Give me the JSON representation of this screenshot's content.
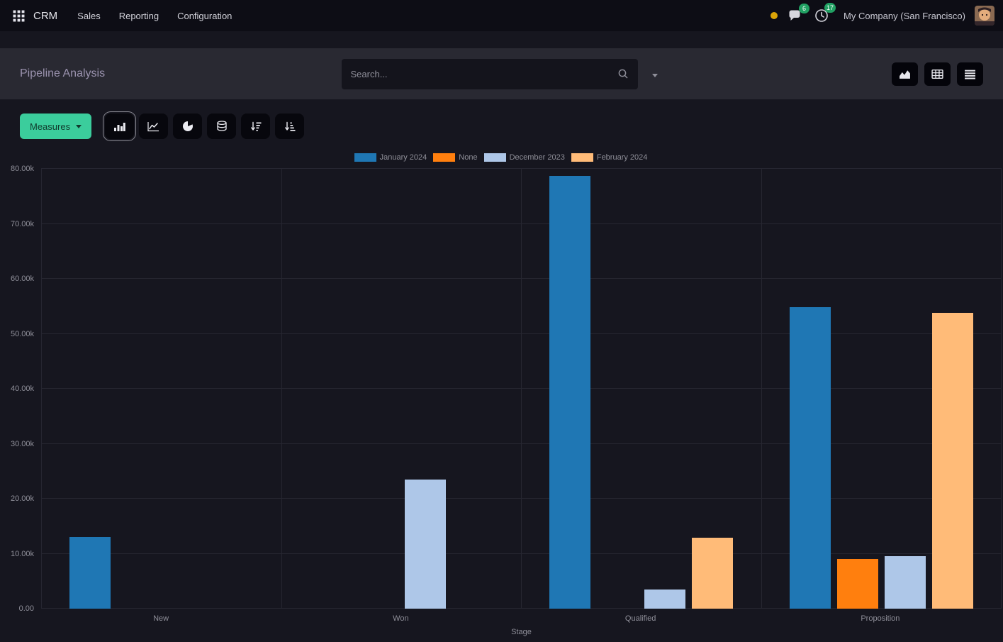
{
  "navbar": {
    "app_name": "CRM",
    "menus": [
      "Sales",
      "Reporting",
      "Configuration"
    ],
    "systray": {
      "messages_badge": "6",
      "activities_badge": "17",
      "company_name": "My Company (San Francisco)"
    }
  },
  "control_panel": {
    "breadcrumb": "Pipeline Analysis",
    "search": {
      "placeholder": "Search..."
    }
  },
  "graph_toolbar": {
    "measures_label": "Measures"
  },
  "icons": {
    "apps-grid-icon": "▦",
    "online-dot-icon": "●",
    "messages-icon": "🗨",
    "activities-clock-icon": "🕑",
    "search-icon": "🔍",
    "dropdown-caret-icon": "▾",
    "view-graph-icon": "⛰",
    "view-pivot-icon": "⊞",
    "view-list-icon": "☰",
    "bar-chart-icon": "▅▇▃",
    "line-chart-icon": "↗",
    "pie-chart-icon": "◕",
    "stacked-icon": "⛁",
    "sort-desc-icon": "↓≡",
    "sort-asc-icon": "↑≡"
  },
  "chart_data": {
    "type": "bar",
    "title": "",
    "xlabel": "Stage",
    "ylabel": "",
    "ylim": [
      0,
      80000
    ],
    "y_tick_labels": [
      "0.00",
      "10.00k",
      "20.00k",
      "30.00k",
      "40.00k",
      "50.00k",
      "60.00k",
      "70.00k",
      "80.00k"
    ],
    "categories": [
      "New",
      "Won",
      "Qualified",
      "Proposition"
    ],
    "series": [
      {
        "name": "January 2024",
        "color": "#1f77b4",
        "values": [
          13000,
          0,
          78700,
          54800
        ]
      },
      {
        "name": "None",
        "color": "#ff7f0e",
        "values": [
          0,
          0,
          0,
          9000
        ]
      },
      {
        "name": "December 2023",
        "color": "#aec7e8",
        "values": [
          0,
          23500,
          3500,
          9500
        ]
      },
      {
        "name": "February 2024",
        "color": "#ffbb78",
        "values": [
          0,
          0,
          12900,
          53800
        ]
      }
    ],
    "legend_position": "top",
    "grid": true
  }
}
